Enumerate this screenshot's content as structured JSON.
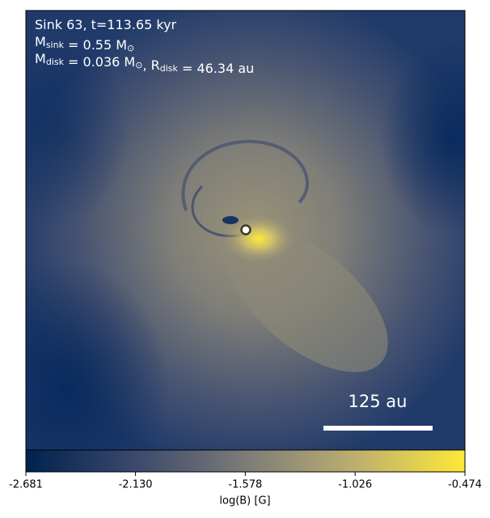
{
  "chart_data": {
    "type": "heatmap",
    "annotations": [
      [
        {
          "text": "Sink 63, t=113.65 kyr"
        }
      ],
      [
        {
          "text": "M"
        },
        {
          "sub": "sink"
        },
        {
          "text": " = 0.55 M"
        },
        {
          "sub": "⊙"
        }
      ],
      [
        {
          "text": "M"
        },
        {
          "sub": "disk"
        },
        {
          "text": " = 0.036 M"
        },
        {
          "sub": "⊙"
        },
        {
          "text": ", R"
        },
        {
          "sub": "disk"
        },
        {
          "text": " = 46.34 au"
        }
      ]
    ],
    "scale_bar": {
      "label": "125 au"
    },
    "colorbar": {
      "label": "log(B) [G]",
      "lim": [
        -2.681,
        -0.474
      ],
      "ticks": [
        -2.681,
        {
          "value": -2.13,
          "label": "-2.130"
        },
        -1.578,
        -1.026,
        -0.474
      ],
      "colormap": [
        "#00224e",
        "#3b496c",
        "#7c7b78",
        "#bcaf6f",
        "#fee838"
      ]
    }
  }
}
